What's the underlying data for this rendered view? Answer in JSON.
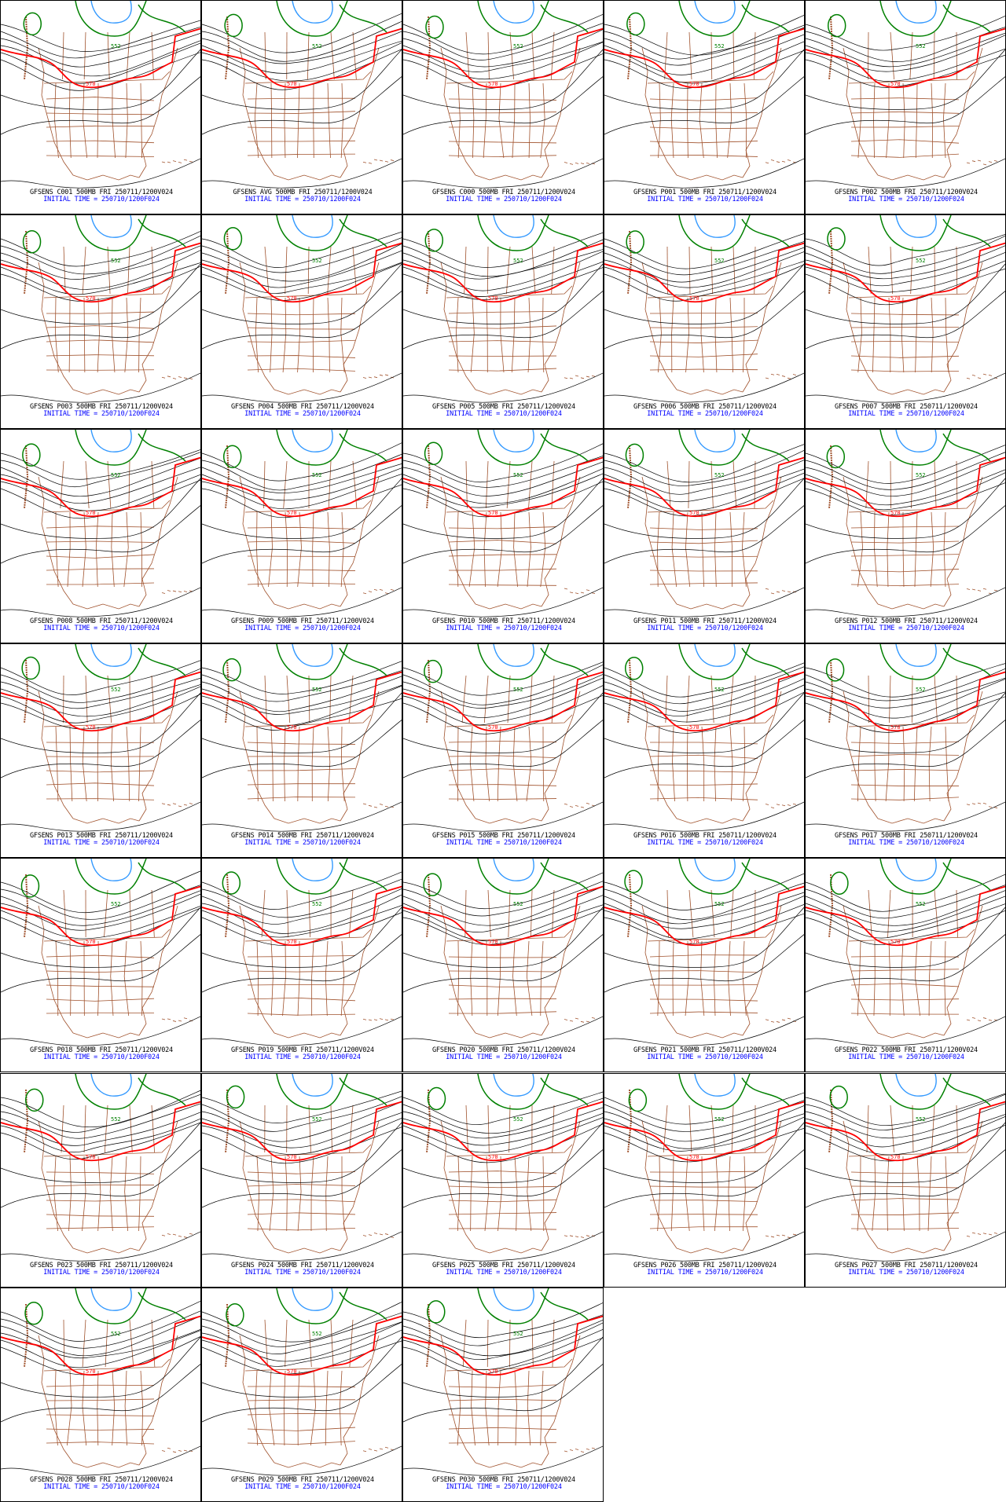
{
  "panels": [
    {
      "member": "C001",
      "line1": "GFSENS C001 500MB FRI 250711/1200V024",
      "line2": "INITIAL TIME = 250710/1200F024"
    },
    {
      "member": "AVG",
      "line1": "GFSENS AVG 500MB FRI 250711/1200V024",
      "line2": "INITIAL TIME = 250710/1200F024"
    },
    {
      "member": "C000",
      "line1": "GFSENS C000 500MB FRI 250711/1200V024",
      "line2": "INITIAL TIME = 250710/1200F024"
    },
    {
      "member": "P001",
      "line1": "GFSENS P001 500MB FRI 250711/1200V024",
      "line2": "INITIAL TIME = 250710/1200F024"
    },
    {
      "member": "P002",
      "line1": "GFSENS P002 500MB FRI 250711/1200V024",
      "line2": "INITIAL TIME = 250710/1200F024"
    },
    {
      "member": "P003",
      "line1": "GFSENS P003 500MB FRI 250711/1200V024",
      "line2": "INITIAL TIME = 250710/1200F024"
    },
    {
      "member": "P004",
      "line1": "GFSENS P004 500MB FRI 250711/1200V024",
      "line2": "INITIAL TIME = 250710/1200F024"
    },
    {
      "member": "P005",
      "line1": "GFSENS P005 500MB FRI 250711/1200V024",
      "line2": "INITIAL TIME = 250710/1200F024"
    },
    {
      "member": "P006",
      "line1": "GFSENS P006 500MB FRI 250711/1200V024",
      "line2": "INITIAL TIME = 250710/1200F024"
    },
    {
      "member": "P007",
      "line1": "GFSENS P007 500MB FRI 250711/1200V024",
      "line2": "INITIAL TIME = 250710/1200F024"
    },
    {
      "member": "P008",
      "line1": "GFSENS P008 500MB FRI 250711/1200V024",
      "line2": "INITIAL TIME = 250710/1200F024"
    },
    {
      "member": "P009",
      "line1": "GFSENS P009 500MB FRI 250711/1200V024",
      "line2": "INITIAL TIME = 250710/1200F024"
    },
    {
      "member": "P010",
      "line1": "GFSENS P010 500MB FRI 250711/1200V024",
      "line2": "INITIAL TIME = 250710/1200F024"
    },
    {
      "member": "P011",
      "line1": "GFSENS P011 500MB FRI 250711/1200V024",
      "line2": "INITIAL TIME = 250710/1200F024"
    },
    {
      "member": "P012",
      "line1": "GFSENS P012 500MB FRI 250711/1200V024",
      "line2": "INITIAL TIME = 250710/1200F024"
    },
    {
      "member": "P013",
      "line1": "GFSENS P013 500MB FRI 250711/1200V024",
      "line2": "INITIAL TIME = 250710/1200F024"
    },
    {
      "member": "P014",
      "line1": "GFSENS P014 500MB FRI 250711/1200V024",
      "line2": "INITIAL TIME = 250710/1200F024"
    },
    {
      "member": "P015",
      "line1": "GFSENS P015 500MB FRI 250711/1200V024",
      "line2": "INITIAL TIME = 250710/1200F024"
    },
    {
      "member": "P016",
      "line1": "GFSENS P016 500MB FRI 250711/1200V024",
      "line2": "INITIAL TIME = 250710/1200F024"
    },
    {
      "member": "P017",
      "line1": "GFSENS P017 500MB FRI 250711/1200V024",
      "line2": "INITIAL TIME = 250710/1200F024"
    },
    {
      "member": "P018",
      "line1": "GFSENS P018 500MB FRI 250711/1200V024",
      "line2": "INITIAL TIME = 250710/1200F024"
    },
    {
      "member": "P019",
      "line1": "GFSENS P019 500MB FRI 250711/1200V024",
      "line2": "INITIAL TIME = 250710/1200F024"
    },
    {
      "member": "P020",
      "line1": "GFSENS P020 500MB FRI 250711/1200V024",
      "line2": "INITIAL TIME = 250710/1200F024"
    },
    {
      "member": "P021",
      "line1": "GFSENS P021 500MB FRI 250711/1200V024",
      "line2": "INITIAL TIME = 250710/1200F024"
    },
    {
      "member": "P022",
      "line1": "GFSENS P022 500MB FRI 250711/1200V024",
      "line2": "INITIAL TIME = 250710/1200F024"
    },
    {
      "member": "P023",
      "line1": "GFSENS P023 500MB FRI 250711/1200V024",
      "line2": "INITIAL TIME = 250710/1200F024"
    },
    {
      "member": "P024",
      "line1": "GFSENS P024 500MB FRI 250711/1200V024",
      "line2": "INITIAL TIME = 250710/1200F024"
    },
    {
      "member": "P025",
      "line1": "GFSENS P025 500MB FRI 250711/1200V024",
      "line2": "INITIAL TIME = 250710/1200F024"
    },
    {
      "member": "P026",
      "line1": "GFSENS P026 500MB FRI 250711/1200V024",
      "line2": "INITIAL TIME = 250710/1200F024"
    },
    {
      "member": "P027",
      "line1": "GFSENS P027 500MB FRI 250711/1200V024",
      "line2": "INITIAL TIME = 250710/1200F024"
    },
    {
      "member": "P028",
      "line1": "GFSENS P028 500MB FRI 250711/1200V024",
      "line2": "INITIAL TIME = 250710/1200F024"
    },
    {
      "member": "P029",
      "line1": "GFSENS P029 500MB FRI 250711/1200V024",
      "line2": "INITIAL TIME = 250710/1200F024"
    },
    {
      "member": "P030",
      "line1": "GFSENS P030 500MB FRI 250711/1200V024",
      "line2": "INITIAL TIME = 250710/1200F024"
    }
  ],
  "contour_labels": {
    "green": "552",
    "red": "570"
  },
  "colors": {
    "height_contour": "#000000",
    "contour_552": "#008000",
    "contour_570": "#ff0000",
    "low_center": "#3399ff",
    "map_borders": "#a0522d",
    "caption_line1": "#000000",
    "caption_line2": "#0000ff"
  }
}
